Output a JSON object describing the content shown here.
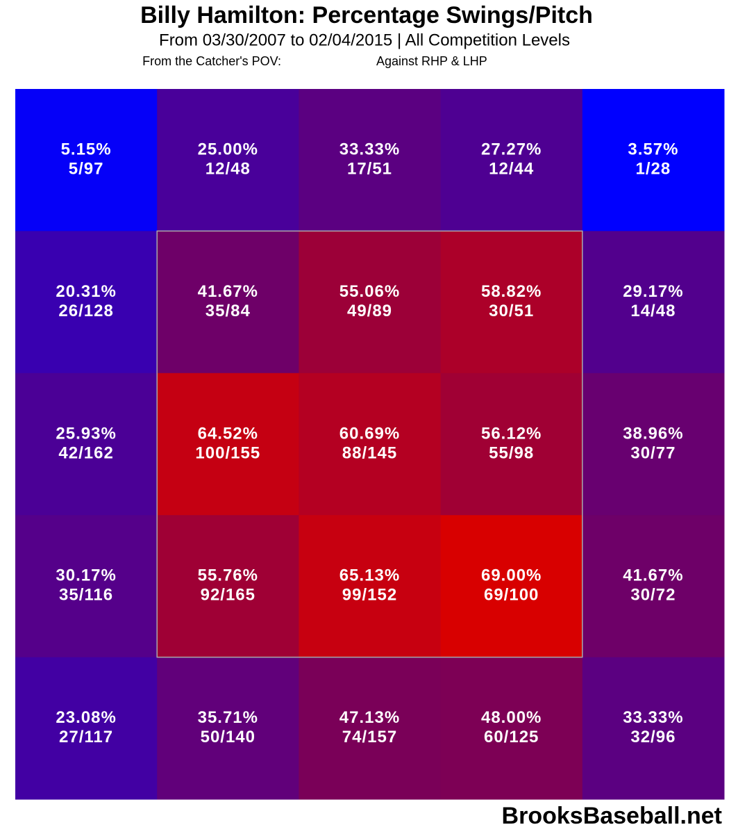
{
  "chart_data": {
    "type": "heatmap",
    "title": "Billy Hamilton: Percentage Swings/Pitch",
    "subtitle": "From 03/30/2007 to 02/04/2015 | All Competition Levels",
    "notes": [
      "From the Catcher's POV:",
      "Against RHP & LHP"
    ],
    "values": [
      [
        5.15,
        25,
        33.33,
        27.27,
        3.57
      ],
      [
        20.31,
        41.67,
        55.06,
        58.82,
        29.17
      ],
      [
        25.93,
        64.52,
        60.69,
        56.12,
        38.96
      ],
      [
        30.17,
        55.76,
        65.13,
        69,
        41.67
      ],
      [
        23.08,
        35.71,
        47.13,
        48,
        33.33
      ]
    ],
    "value_labels": [
      [
        "5.15%",
        "25.00%",
        "33.33%",
        "27.27%",
        "3.57%"
      ],
      [
        "20.31%",
        "41.67%",
        "55.06%",
        "58.82%",
        "29.17%"
      ],
      [
        "25.93%",
        "64.52%",
        "60.69%",
        "56.12%",
        "38.96%"
      ],
      [
        "30.17%",
        "55.76%",
        "65.13%",
        "69.00%",
        "41.67%"
      ],
      [
        "23.08%",
        "35.71%",
        "47.13%",
        "48.00%",
        "33.33%"
      ]
    ],
    "counts": [
      [
        "5/97",
        "12/48",
        "17/51",
        "12/44",
        "1/28"
      ],
      [
        "26/128",
        "35/84",
        "49/89",
        "30/51",
        "14/48"
      ],
      [
        "42/162",
        "100/155",
        "88/145",
        "55/98",
        "30/77"
      ],
      [
        "35/116",
        "92/165",
        "99/152",
        "69/100",
        "30/72"
      ],
      [
        "27/117",
        "50/140",
        "74/157",
        "60/125",
        "32/96"
      ]
    ],
    "colors": [
      "#0000ff",
      "#4a0098",
      "#7a0058",
      "#d80000"
    ],
    "source": "BrooksBaseball.net"
  }
}
